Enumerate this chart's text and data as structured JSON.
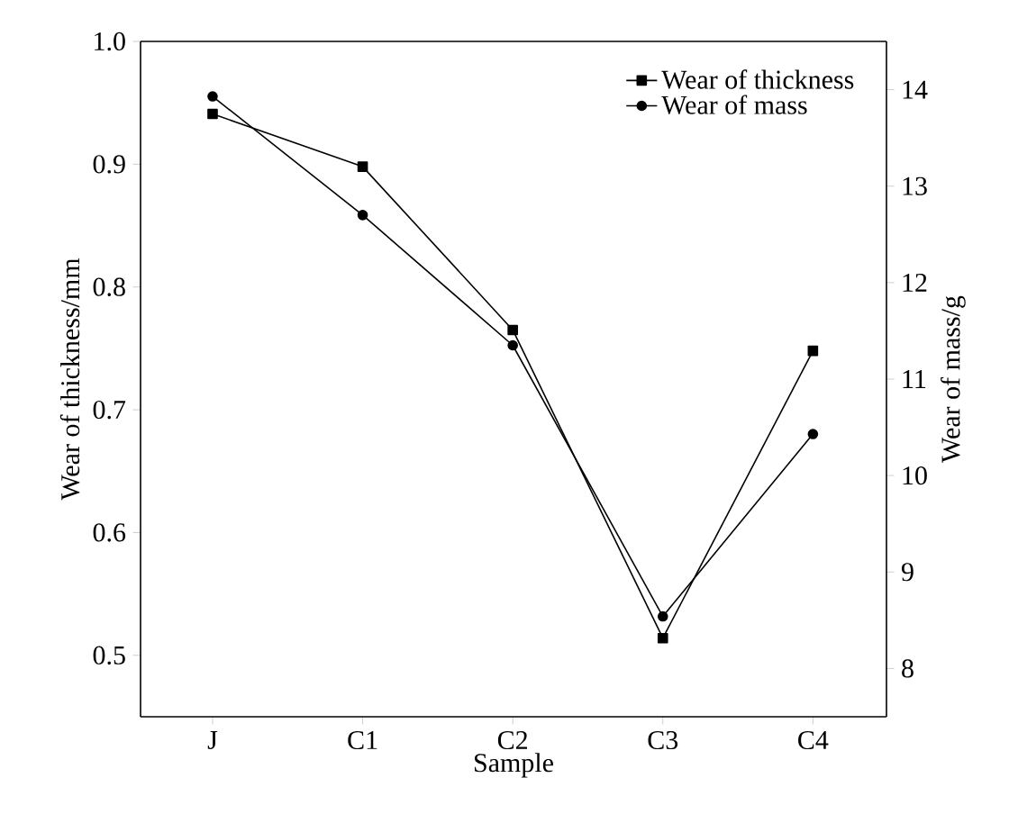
{
  "chart_data": {
    "type": "line",
    "categories": [
      "J",
      "C1",
      "C2",
      "C3",
      "C4"
    ],
    "xlabel": "Sample",
    "ylabel": "Wear of thickness/mm",
    "y2label": "Wear of mass/g",
    "ylim": [
      0.45,
      1.0
    ],
    "yticks": [
      0.5,
      0.6,
      0.7,
      0.8,
      0.9,
      {
        "value": 1,
        "label": "1.0"
      }
    ],
    "y2lim": [
      7.5,
      14.5
    ],
    "y2ticks": [
      8,
      9,
      10,
      11,
      12,
      13,
      14
    ],
    "legend": "top right",
    "series": [
      {
        "name": "Wear of thickness",
        "color": "#000000",
        "marker": "square",
        "values": [
          0.941,
          0.898,
          0.765,
          0.514,
          0.748
        ]
      },
      {
        "name": "Wear of mass",
        "color": "#000000",
        "marker": "circle",
        "axis": "y2",
        "values": [
          13.93,
          12.7,
          11.35,
          8.54,
          10.43
        ]
      }
    ]
  }
}
